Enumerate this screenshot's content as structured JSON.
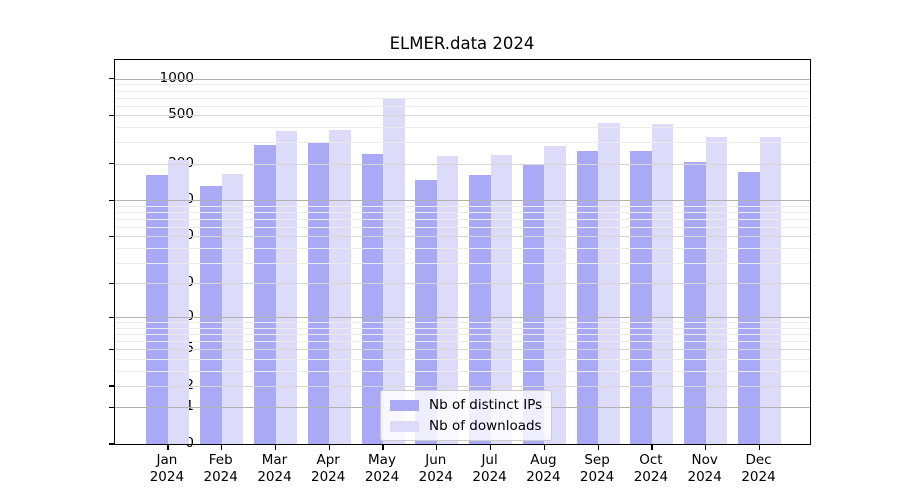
{
  "title": "ELMER.data 2024",
  "chart_data": {
    "type": "bar",
    "title": "ELMER.data 2024",
    "categories": [
      "Jan",
      "Feb",
      "Mar",
      "Apr",
      "May",
      "Jun",
      "Jul",
      "Aug",
      "Sep",
      "Oct",
      "Nov",
      "Dec"
    ],
    "x_tick_second_line": "2024",
    "series": [
      {
        "name": "Nb of distinct IPs",
        "color": "#a9a9f5",
        "values": [
          160,
          130,
          285,
          300,
          240,
          148,
          160,
          200,
          255,
          255,
          205,
          170
        ]
      },
      {
        "name": "Nb of downloads",
        "color": "#dcdcfa",
        "values": [
          215,
          165,
          375,
          380,
          700,
          230,
          235,
          280,
          430,
          425,
          335,
          330
        ]
      }
    ],
    "y_scale": "log1p",
    "ylim": [
      0,
      1360
    ],
    "y_ticks": [
      0,
      1,
      2,
      5,
      10,
      20,
      50,
      100,
      200,
      500,
      1000
    ],
    "y_minor_ticks": [
      3,
      4,
      6,
      7,
      8,
      9,
      30,
      40,
      60,
      70,
      80,
      90,
      300,
      400,
      600,
      700,
      800,
      900
    ],
    "grid": true,
    "legend_position": "lower center inside",
    "colors": {
      "grid_major": "#b2b2b2",
      "grid_mid": "#d6d6d6",
      "grid_minor": "#ebebeb",
      "axis": "#000000",
      "legend_border": "#cccccc"
    }
  }
}
